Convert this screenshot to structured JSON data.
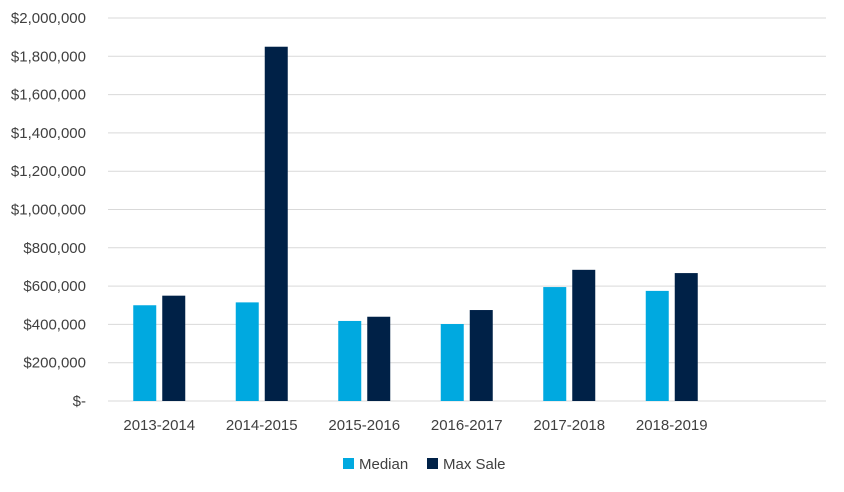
{
  "colors": {
    "median": "#00a9e0",
    "max_sale": "#002147",
    "grid": "#d9d9d9",
    "text": "#404040"
  },
  "chart_data": {
    "type": "bar",
    "title": "",
    "xlabel": "",
    "ylabel": "",
    "categories": [
      "2013-2014",
      "2014-2015",
      "2015-2016",
      "2016-2017",
      "2017-2018",
      "2018-2019"
    ],
    "series": [
      {
        "name": "Median",
        "values": [
          500000,
          515000,
          418000,
          402000,
          595000,
          575000
        ]
      },
      {
        "name": "Max Sale",
        "values": [
          550000,
          1850000,
          440000,
          475000,
          685000,
          668000
        ]
      }
    ],
    "ylim": [
      0,
      2000000
    ],
    "yticks": [
      0,
      200000,
      400000,
      600000,
      800000,
      1000000,
      1200000,
      1400000,
      1600000,
      1800000,
      2000000
    ],
    "ytick_labels": [
      "$-",
      "$200,000",
      "$400,000",
      "$600,000",
      "$800,000",
      "$1,000,000",
      "$1,200,000",
      "$1,400,000",
      "$1,600,000",
      "$1,800,000",
      "$2,000,000"
    ],
    "grid": true,
    "legend_position": "bottom"
  }
}
